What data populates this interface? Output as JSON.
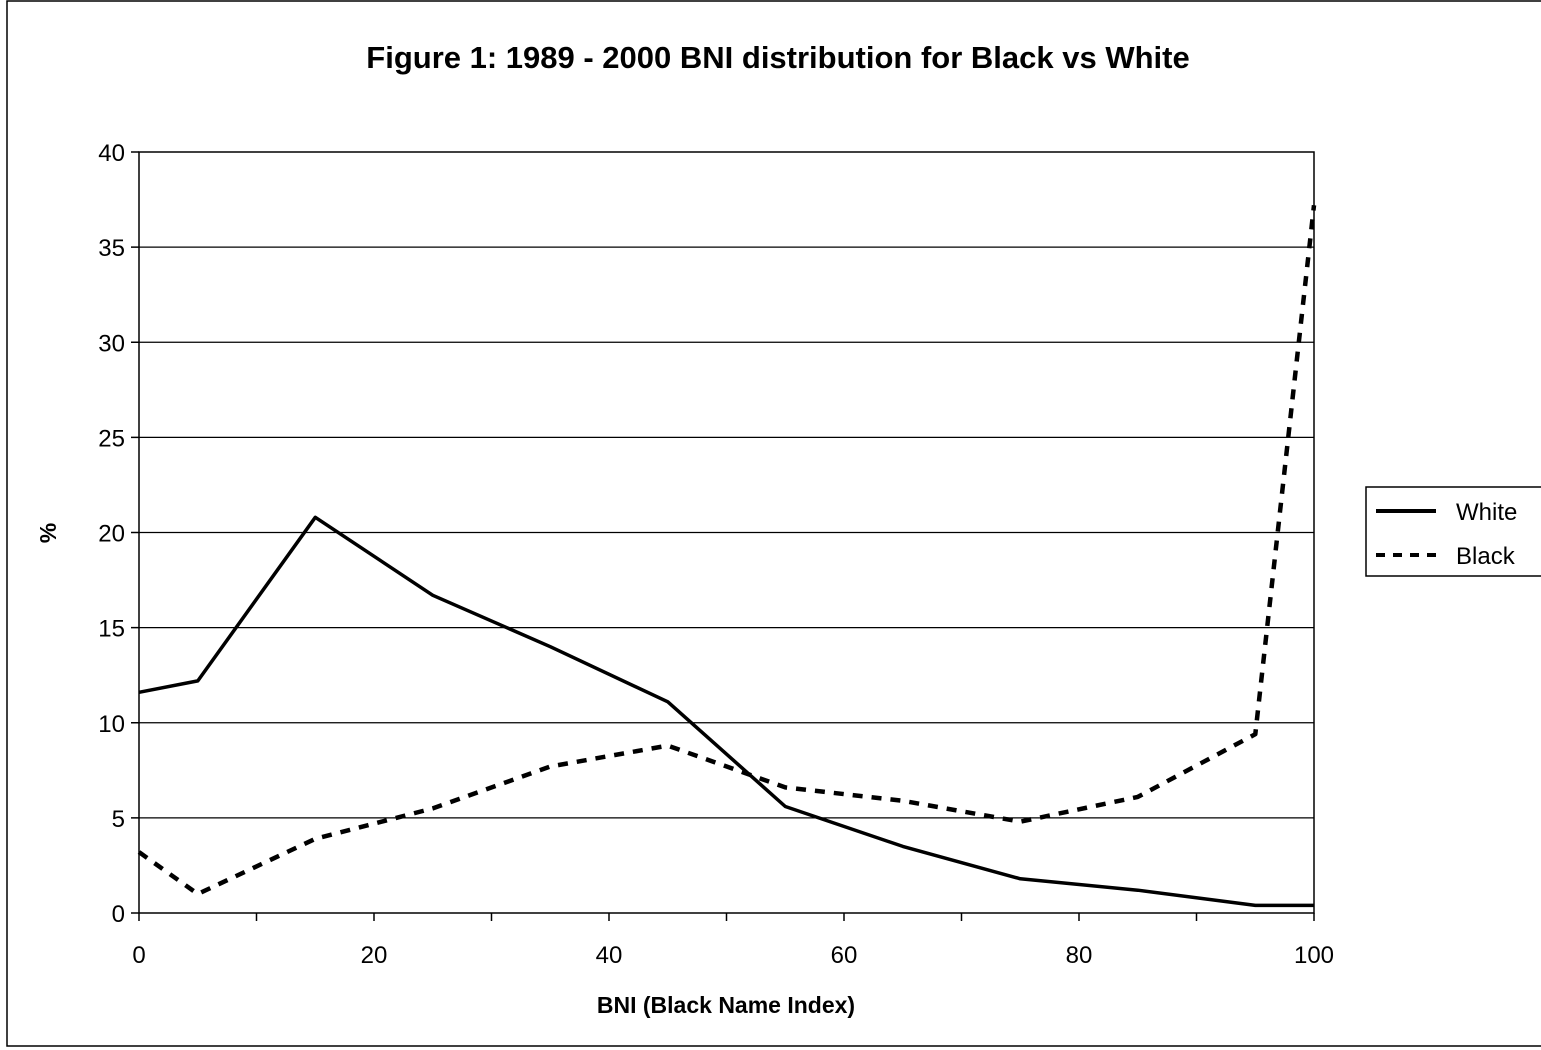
{
  "chart_data": {
    "type": "line",
    "title": "Figure 1: 1989 - 2000 BNI distribution for Black vs White",
    "xlabel": "BNI (Black Name Index)",
    "ylabel": "%",
    "xlim": [
      0,
      100
    ],
    "ylim": [
      0,
      40
    ],
    "x_ticks": [
      "0",
      "20",
      "40",
      "60",
      "80",
      "100"
    ],
    "y_ticks": [
      "0",
      "5",
      "10",
      "15",
      "20",
      "25",
      "30",
      "35",
      "40"
    ],
    "grid": "horizontal",
    "legend_position": "right",
    "x": [
      0,
      5,
      15,
      25,
      35,
      45,
      55,
      65,
      75,
      85,
      95,
      100
    ],
    "series": [
      {
        "name": "White",
        "style": "solid",
        "values": [
          11.6,
          12.2,
          20.8,
          16.7,
          14.0,
          11.1,
          5.6,
          3.5,
          1.8,
          1.2,
          0.4,
          0.4
        ]
      },
      {
        "name": "Black",
        "style": "dashed",
        "values": [
          3.2,
          1.0,
          3.9,
          5.5,
          7.7,
          8.8,
          6.6,
          5.9,
          4.8,
          6.1,
          9.4,
          37.2
        ]
      }
    ],
    "colors": {
      "line": "#000000",
      "grid": "#000000",
      "background": "#ffffff"
    }
  }
}
